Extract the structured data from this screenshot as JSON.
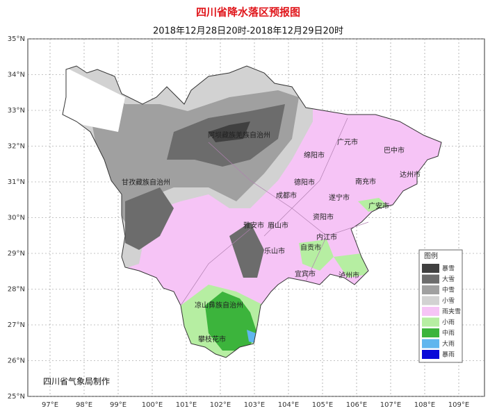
{
  "header": {
    "title": "四川省降水落区预报图",
    "subtitle": "2018年12月28日20时-2018年12月29日20时"
  },
  "axes": {
    "latitudes": [
      "35°N",
      "34°N",
      "33°N",
      "32°N",
      "31°N",
      "30°N",
      "29°N",
      "28°N",
      "27°N",
      "26°N",
      "25°N"
    ],
    "longitudes": [
      "97°E",
      "98°E",
      "99°E",
      "100°E",
      "101°E",
      "102°E",
      "103°E",
      "104°E",
      "105°E",
      "106°E",
      "107°E",
      "108°E",
      "109°E"
    ]
  },
  "regions": [
    "阿坝藏族羌族自治州",
    "甘孜藏族自治州",
    "广元市",
    "巴中市",
    "绵阳市",
    "南充市",
    "达州市",
    "德阳市",
    "成都市",
    "遂宁市",
    "广安市",
    "资阳市",
    "雅安市",
    "眉山市",
    "内江市",
    "自贡市",
    "乐山市",
    "泸州市",
    "宜宾市",
    "凉山彝族自治州",
    "攀枝花市"
  ],
  "legend": {
    "title": "图例",
    "items": [
      {
        "name": "暴雪",
        "color": "#404040"
      },
      {
        "name": "大雪",
        "color": "#6c6c6c"
      },
      {
        "name": "中雪",
        "color": "#a0a0a0"
      },
      {
        "name": "小雪",
        "color": "#d2d2d2"
      },
      {
        "name": "雨夹雪",
        "color": "#f6c4f6"
      },
      {
        "name": "小雨",
        "color": "#b6eea2"
      },
      {
        "name": "中雨",
        "color": "#3cb43c"
      },
      {
        "name": "大雨",
        "color": "#60b6ee"
      },
      {
        "name": "暴雨",
        "color": "#0a0ad8"
      }
    ]
  },
  "footer": {
    "credit": "四川省气象局制作"
  }
}
